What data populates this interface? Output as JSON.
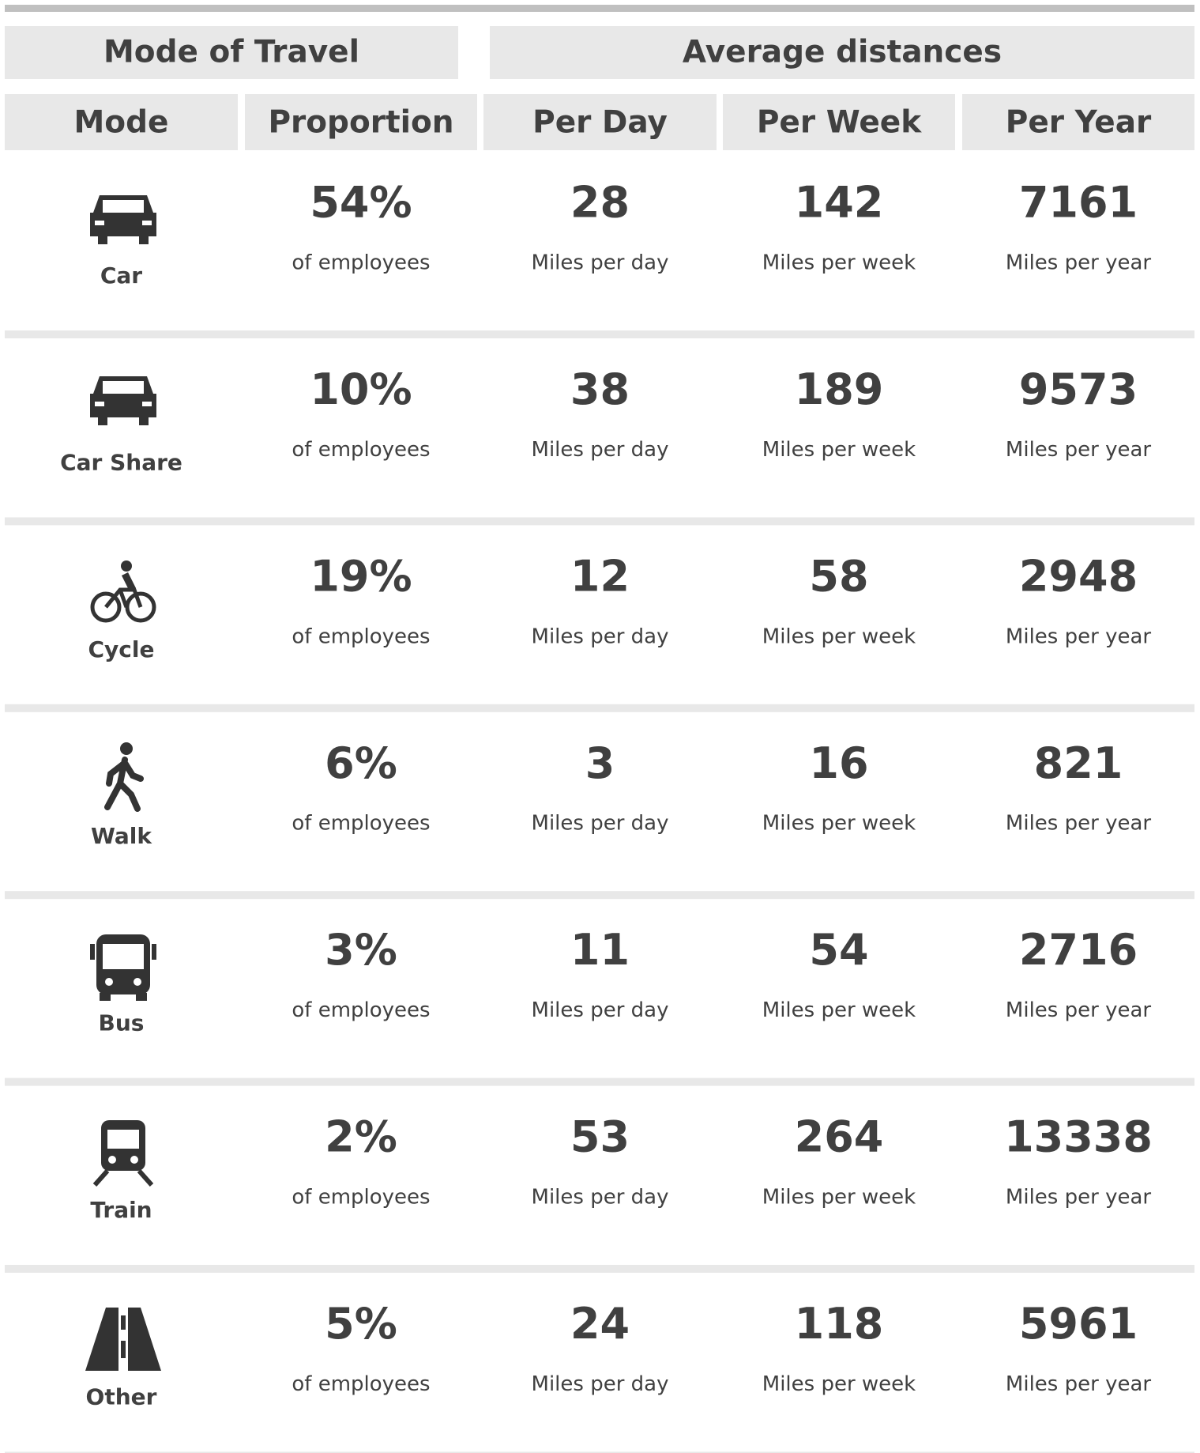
{
  "header": {
    "groups": [
      "Mode of Travel",
      "Average distances"
    ],
    "columns": [
      {
        "name": "Mode"
      },
      {
        "name": "Proportion",
        "unit": "of employees"
      },
      {
        "name": "Per Day",
        "unit": "Miles per day"
      },
      {
        "name": "Per Week",
        "unit": "Miles per week"
      },
      {
        "name": "Per Year",
        "unit": "Miles per year"
      }
    ]
  },
  "table": {
    "rows": [
      [
        "Car",
        "54%",
        "28",
        "142",
        "7161"
      ],
      [
        "Car Share",
        "10%",
        "38",
        "189",
        "9573"
      ],
      [
        "Cycle",
        "19%",
        "12",
        "58",
        "2948"
      ],
      [
        "Walk",
        "6%",
        "3",
        "16",
        "821"
      ],
      [
        "Bus",
        "3%",
        "11",
        "54",
        "2716"
      ],
      [
        "Train",
        "2%",
        "53",
        "264",
        "13338"
      ],
      [
        "Other",
        "5%",
        "24",
        "118",
        "5961"
      ]
    ]
  }
}
